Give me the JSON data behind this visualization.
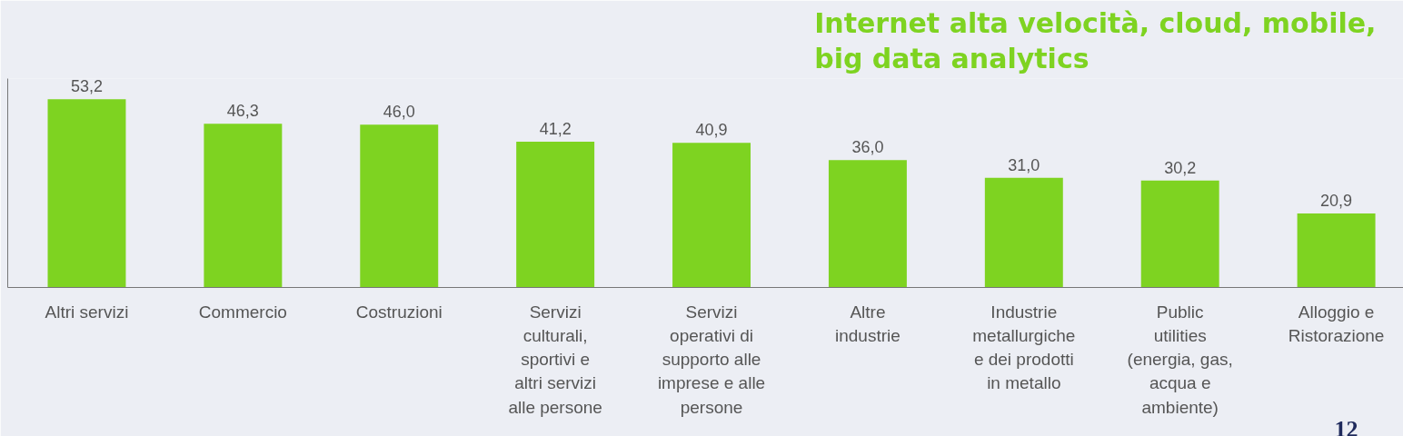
{
  "chart_data": {
    "type": "bar",
    "title": "Internet alta velocità, cloud, mobile, big data analytics",
    "categories": [
      "Altri servizi",
      "Commercio",
      "Costruzioni",
      "Servizi culturali, sportivi e altri servizi alle persone",
      "Servizi operativi di supporto alle imprese e alle persone",
      "Altre industrie",
      "Industrie metallurgiche e dei prodotti in metallo",
      "Public utilities (energia, gas, acqua e ambiente)",
      "Alloggio e Ristorazione"
    ],
    "values": [
      53.2,
      46.3,
      46.0,
      41.2,
      40.9,
      36.0,
      31.0,
      30.2,
      20.9
    ],
    "value_labels": [
      "53,2",
      "46,3",
      "46,0",
      "41,2",
      "40,9",
      "36,0",
      "31,0",
      "30,2",
      "20,9"
    ],
    "color": "#7ed321",
    "tick_labels": "x",
    "grid": false,
    "annotations": [
      "12"
    ]
  }
}
